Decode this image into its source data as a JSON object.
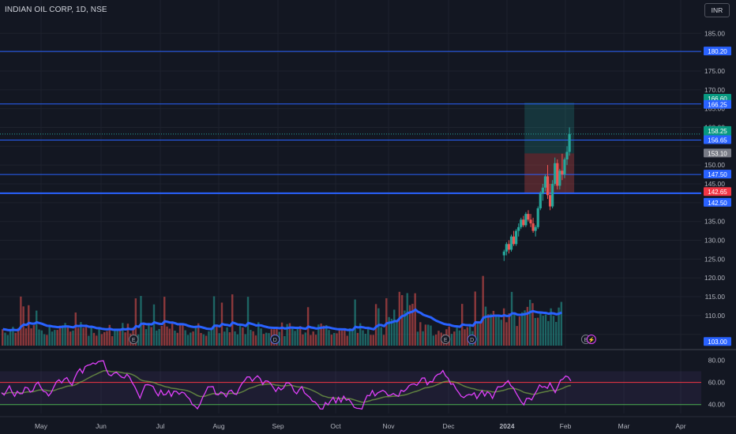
{
  "header": {
    "symbol_title": "INDIAN OIL CORP, 1D, NSE",
    "currency_button": "INR"
  },
  "colors": {
    "background": "#131722",
    "grid": "#1e222d",
    "axis_text": "#b2b5be",
    "hline": "#2962ff",
    "up": "#26a69a",
    "down": "#ef5350",
    "ma": "#2962ff",
    "rsi": "#e040fb",
    "profit_zone": "#26a69a",
    "loss_zone": "#ef5350",
    "rsi_upper": "#f23645",
    "rsi_lower": "#4caf50"
  },
  "chart_data": {
    "type": "candlestick",
    "price_axis": {
      "ticks": [
        "185.00",
        "175.00",
        "170.00",
        "165.00",
        "160.00",
        "150.00",
        "145.00",
        "135.00",
        "130.00",
        "125.00",
        "120.00",
        "115.00",
        "110.00"
      ],
      "ylim": [
        102,
        188
      ]
    },
    "horizontal_lines": [
      180.2,
      166.25,
      156.65,
      147.5,
      142.5
    ],
    "price_labels": [
      {
        "text": "180.20",
        "value": 180.2,
        "style": "line"
      },
      {
        "text": "166.60",
        "value": 166.6,
        "style": "profit"
      },
      {
        "text": "166.25",
        "value": 166.25,
        "style": "line"
      },
      {
        "text": "158.25",
        "value": 158.25,
        "style": "last"
      },
      {
        "text": "03:18:36",
        "value": 157.0,
        "style": "last-sub"
      },
      {
        "text": "156.65",
        "value": 156.65,
        "style": "line"
      },
      {
        "text": "153.10",
        "value": 153.1,
        "style": "entry"
      },
      {
        "text": "147.50",
        "value": 147.5,
        "style": "line"
      },
      {
        "text": "142.65",
        "value": 142.65,
        "style": "stop"
      },
      {
        "text": "142.50",
        "value": 142.5,
        "style": "line"
      },
      {
        "text": "103.00",
        "value": 103.0,
        "style": "volume"
      }
    ],
    "position_tool": {
      "entry": 153.1,
      "target": 166.6,
      "stop": 142.65
    },
    "time_axis": {
      "labels": [
        "May",
        "Jun",
        "Jul",
        "Aug",
        "Sep",
        "Oct",
        "Nov",
        "Dec",
        "2024",
        "Feb",
        "Mar",
        "Apr"
      ],
      "bold_label": "2024"
    },
    "event_markers": [
      {
        "text": "E",
        "month_offset": 1.55
      },
      {
        "text": "E",
        "month_offset": 3.95
      },
      {
        "text": "D",
        "month_offset": 3.95
      },
      {
        "text": "E",
        "month_offset": 6.95
      },
      {
        "text": "D",
        "month_offset": 7.4
      },
      {
        "text": "E",
        "month_offset": 9.35
      }
    ],
    "candles_visible_from": "Nov",
    "candles": [
      [
        126,
        127.5,
        124.5,
        127
      ],
      [
        127,
        129.5,
        126,
        129
      ],
      [
        129,
        130,
        126.5,
        127.5
      ],
      [
        127.5,
        131.5,
        127,
        131
      ],
      [
        131,
        132.5,
        128.5,
        129
      ],
      [
        129,
        133,
        128.5,
        132.5
      ],
      [
        132.5,
        134.5,
        131,
        133.5
      ],
      [
        133.5,
        136,
        133,
        135.5
      ],
      [
        135.5,
        136.5,
        133.5,
        134
      ],
      [
        134,
        137.5,
        133.5,
        137
      ],
      [
        137,
        138,
        135,
        135.5
      ],
      [
        135.5,
        137,
        133.5,
        134.5
      ],
      [
        134.5,
        136,
        132,
        132.5
      ],
      [
        132.5,
        134,
        131,
        133.5
      ],
      [
        133.5,
        139,
        133,
        138.5
      ],
      [
        138.5,
        143,
        138,
        142.5
      ],
      [
        142.5,
        145,
        140.5,
        144
      ],
      [
        144,
        147.5,
        143,
        147
      ],
      [
        147,
        150,
        141,
        142
      ],
      [
        142,
        145,
        138,
        139
      ],
      [
        139,
        146,
        138.5,
        145
      ],
      [
        145,
        152,
        144.5,
        150.5
      ],
      [
        150.5,
        151.5,
        143.5,
        144.5
      ],
      [
        144.5,
        149,
        143.5,
        148.5
      ],
      [
        148.5,
        153,
        146,
        147.5
      ],
      [
        147.5,
        152,
        146.5,
        151.5
      ],
      [
        151.5,
        155,
        150,
        153.5
      ],
      [
        153.5,
        160,
        152.5,
        158.25
      ]
    ],
    "rsi": {
      "ticks": [
        "80.00",
        "60.00",
        "40.00"
      ],
      "upper": 70,
      "middle": 60,
      "lower": 40,
      "ylim": [
        32,
        86
      ]
    },
    "volume_note": "histogram with moving average"
  }
}
